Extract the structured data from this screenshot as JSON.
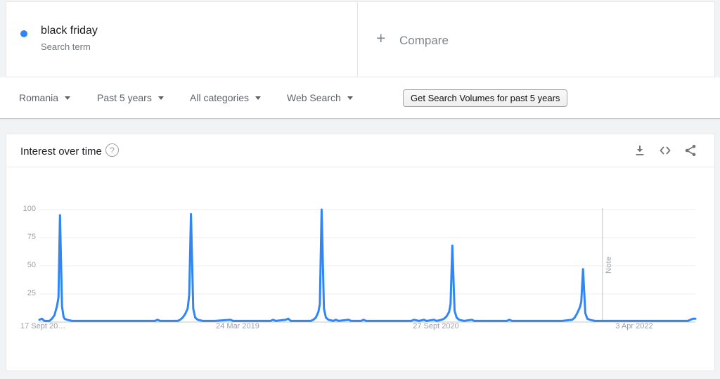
{
  "term_card": {
    "term": "black friday",
    "type_label": "Search term",
    "dot_color": "#3086f6"
  },
  "compare_card": {
    "plus_sign": "+",
    "label": "Compare"
  },
  "filter_bar": {
    "region": "Romania",
    "time_range": "Past 5 years",
    "category": "All categories",
    "search_type": "Web Search",
    "volumes_button_label": "Get Search Volumes for past 5 years"
  },
  "chart_card": {
    "title": "Interest over time",
    "help_glyph": "?",
    "toolbar_icons": [
      "download-icon",
      "embed-icon",
      "share-icon"
    ]
  },
  "chart_data": {
    "type": "line",
    "title": "Interest over time",
    "series_name": "black friday",
    "x_tick_labels": [
      "17 Sept 20…",
      "24 Mar 2019",
      "27 Sept 2020",
      "3 Apr 2022"
    ],
    "x_tick_weeks": [
      0,
      79,
      158,
      237
    ],
    "x_unit": "weeks since first data point (weekly data, ~5 years)",
    "xlim_weeks": [
      0,
      261
    ],
    "y_ticks": [
      25,
      50,
      75,
      100
    ],
    "ylim": [
      0,
      100
    ],
    "grid": "horizontal",
    "legend_position": "none",
    "line_color": "#3086f6",
    "note_line_week": 224,
    "note_label": "Note",
    "peak_summary": [
      {
        "season": "late Nov year 1",
        "value": 95
      },
      {
        "season": "late Nov year 2",
        "value": 96
      },
      {
        "season": "late Nov year 3",
        "value": 100
      },
      {
        "season": "late Nov year 4",
        "value": 68
      },
      {
        "season": "late Nov year 5",
        "value": 47
      }
    ],
    "points": [
      [
        0,
        2
      ],
      [
        1,
        3
      ],
      [
        2,
        1
      ],
      [
        4,
        1
      ],
      [
        5,
        3
      ],
      [
        6,
        6
      ],
      [
        7,
        14
      ],
      [
        7.6,
        22
      ],
      [
        8.2,
        95
      ],
      [
        9,
        14
      ],
      [
        9.6,
        5
      ],
      [
        10,
        3
      ],
      [
        11,
        2
      ],
      [
        13,
        1
      ],
      [
        18,
        1
      ],
      [
        25,
        1
      ],
      [
        32,
        1
      ],
      [
        40,
        1
      ],
      [
        46,
        1
      ],
      [
        47,
        2
      ],
      [
        48,
        1
      ],
      [
        52,
        1
      ],
      [
        55,
        1
      ],
      [
        56,
        2
      ],
      [
        57,
        4
      ],
      [
        58,
        7
      ],
      [
        59,
        12
      ],
      [
        59.6,
        24
      ],
      [
        60.3,
        96
      ],
      [
        61.2,
        12
      ],
      [
        62,
        4
      ],
      [
        63,
        2
      ],
      [
        65,
        1
      ],
      [
        70,
        1
      ],
      [
        76,
        2
      ],
      [
        77,
        1
      ],
      [
        85,
        1
      ],
      [
        92,
        1
      ],
      [
        93,
        2
      ],
      [
        94,
        1
      ],
      [
        98,
        2
      ],
      [
        99,
        3
      ],
      [
        100,
        1
      ],
      [
        104,
        1
      ],
      [
        108,
        1
      ],
      [
        109,
        2
      ],
      [
        110,
        4
      ],
      [
        111,
        9
      ],
      [
        111.6,
        16
      ],
      [
        112.3,
        100
      ],
      [
        113.2,
        12
      ],
      [
        114,
        4
      ],
      [
        115,
        2
      ],
      [
        117,
        1
      ],
      [
        118,
        2
      ],
      [
        119,
        1
      ],
      [
        123,
        2
      ],
      [
        124,
        1
      ],
      [
        128,
        1
      ],
      [
        129,
        2
      ],
      [
        130,
        1
      ],
      [
        136,
        1
      ],
      [
        142,
        1
      ],
      [
        148,
        1
      ],
      [
        149,
        2
      ],
      [
        151,
        1
      ],
      [
        153,
        2
      ],
      [
        154,
        1
      ],
      [
        157,
        2
      ],
      [
        158,
        1
      ],
      [
        160,
        2
      ],
      [
        161,
        3
      ],
      [
        162,
        5
      ],
      [
        163,
        9
      ],
      [
        163.6,
        16
      ],
      [
        164.3,
        68
      ],
      [
        165.2,
        10
      ],
      [
        166,
        4
      ],
      [
        167,
        2
      ],
      [
        169,
        1
      ],
      [
        172,
        2
      ],
      [
        173,
        1
      ],
      [
        179,
        1
      ],
      [
        186,
        1
      ],
      [
        187,
        2
      ],
      [
        188,
        1
      ],
      [
        195,
        1
      ],
      [
        202,
        1
      ],
      [
        208,
        1
      ],
      [
        212,
        2
      ],
      [
        213,
        4
      ],
      [
        214,
        8
      ],
      [
        215,
        13
      ],
      [
        215.6,
        18
      ],
      [
        216.3,
        47
      ],
      [
        217.2,
        8
      ],
      [
        218,
        3
      ],
      [
        219,
        2
      ],
      [
        221,
        1
      ],
      [
        228,
        1
      ],
      [
        235,
        1
      ],
      [
        243,
        1
      ],
      [
        250,
        1
      ],
      [
        256,
        1
      ],
      [
        258,
        1
      ],
      [
        260,
        3
      ],
      [
        261,
        3
      ]
    ]
  }
}
